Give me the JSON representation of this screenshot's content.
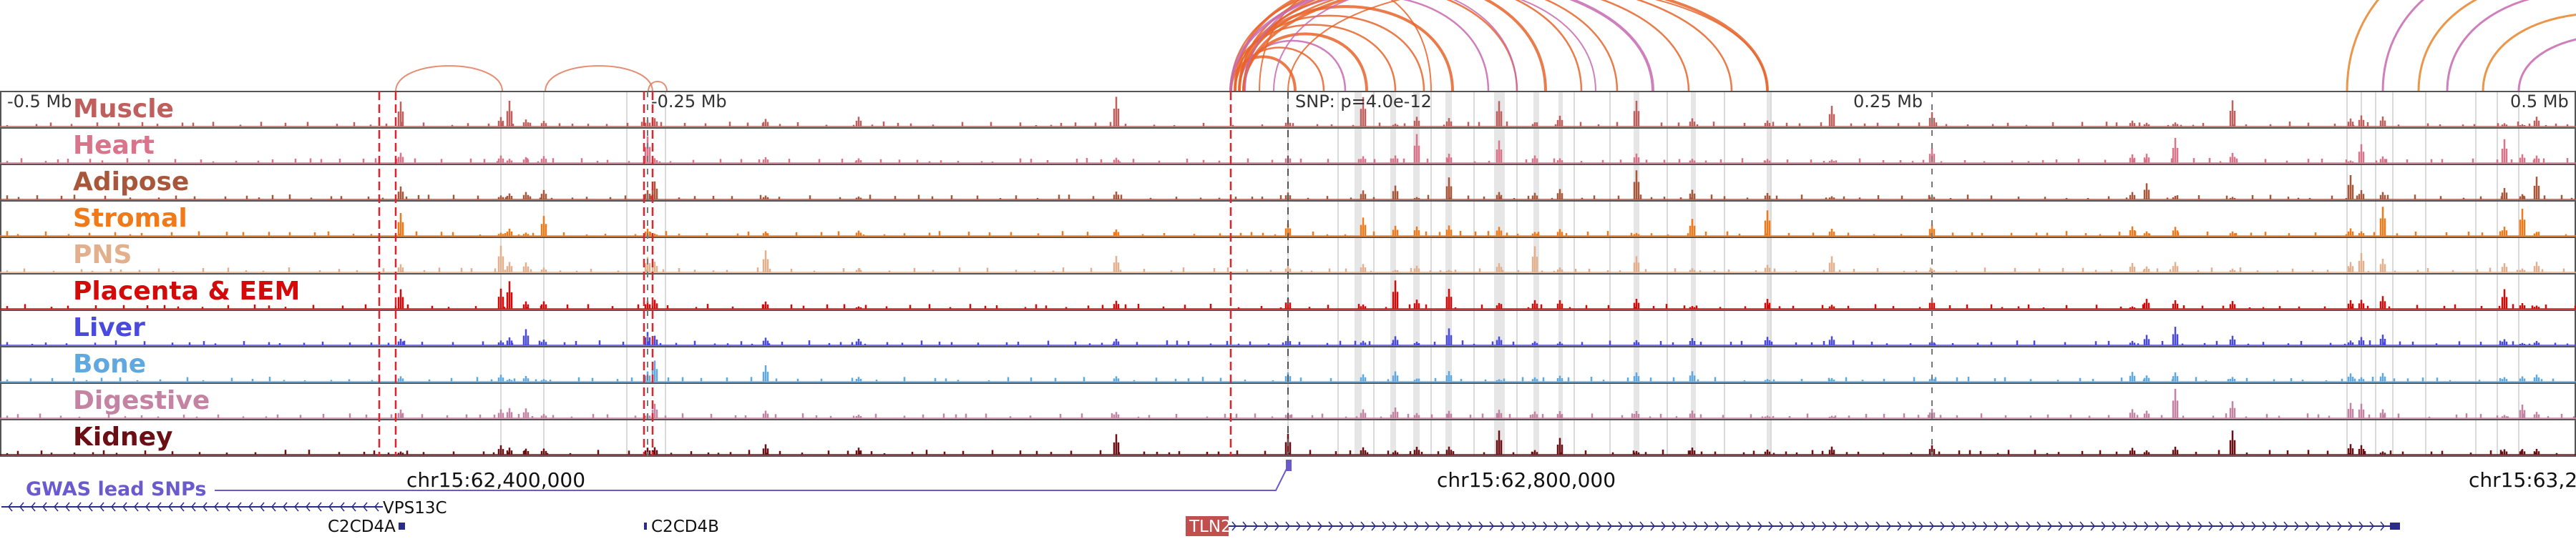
{
  "tracks": [
    {
      "name": "Muscle",
      "color": "#c0605e"
    },
    {
      "name": "Heart",
      "color": "#d9748a"
    },
    {
      "name": "Adipose",
      "color": "#a8573a"
    },
    {
      "name": "Stromal",
      "color": "#f07a1a"
    },
    {
      "name": "PNS",
      "color": "#e3b08e"
    },
    {
      "name": "Placenta & EEM",
      "color": "#d40a0a"
    },
    {
      "name": "Liver",
      "color": "#4a4adc"
    },
    {
      "name": "Bone",
      "color": "#5fa8e0"
    },
    {
      "name": "Digestive",
      "color": "#c483a2"
    },
    {
      "name": "Kidney",
      "color": "#6b0f14"
    }
  ],
  "ruler": {
    "ticks": [
      {
        "label": "-0.5 Mb"
      },
      {
        "label": "-0.25 Mb"
      },
      {
        "label": "SNP: p=4.0e-12"
      },
      {
        "label": "0.25 Mb"
      },
      {
        "label": "0.5 Mb"
      }
    ]
  },
  "coordinates": [
    "chr15:62,400,000",
    "chr15:62,800,000",
    "chr15:63,2"
  ],
  "gwas_label": "GWAS lead SNPs",
  "genes": [
    {
      "name": "VPS13C"
    },
    {
      "name": "C2CD4A"
    },
    {
      "name": "C2CD4B"
    },
    {
      "name": "TLN2"
    }
  ],
  "colors": {
    "loop_main": "#e8642a",
    "loop_secondary": "#c76ab0",
    "snp_line": "#e0242e",
    "gwas": "#6a5acd",
    "gene": "#2b2b8a",
    "tln2_box": "#c0504d",
    "highlight": "#c8c8c8"
  }
}
